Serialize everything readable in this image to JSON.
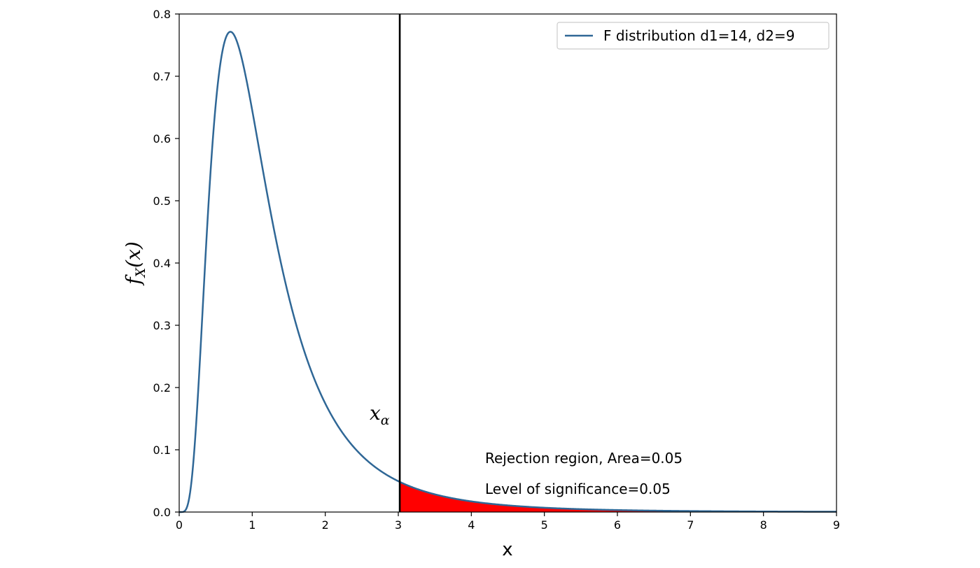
{
  "chart_data": {
    "type": "line",
    "xlabel": "x",
    "ylabel": {
      "base": "f",
      "sub": "X",
      "arg": "(x)"
    },
    "xlim": [
      0,
      9
    ],
    "ylim": [
      0,
      0.8
    ],
    "x_ticks": [
      0,
      1,
      2,
      3,
      4,
      5,
      6,
      7,
      8,
      9
    ],
    "y_ticks": [
      0.0,
      0.1,
      0.2,
      0.3,
      0.4,
      0.5,
      0.6,
      0.7,
      0.8
    ],
    "y_tick_labels": [
      "0.0",
      "0.1",
      "0.2",
      "0.3",
      "0.4",
      "0.5",
      "0.6",
      "0.7",
      "0.8"
    ],
    "grid": false,
    "legend_position": "top-right",
    "series": [
      {
        "name": "F distribution d1=14, d2=9",
        "color": "#2f6796",
        "distribution": "F",
        "d1": 14,
        "d2": 9
      }
    ],
    "critical_value": 3.02,
    "critical_label": {
      "base": "x",
      "sub": "α"
    },
    "rejection_fill_color": "#ff0000",
    "annotations": [
      "Rejection region, Area=0.05",
      "Level of significance=0.05"
    ]
  }
}
